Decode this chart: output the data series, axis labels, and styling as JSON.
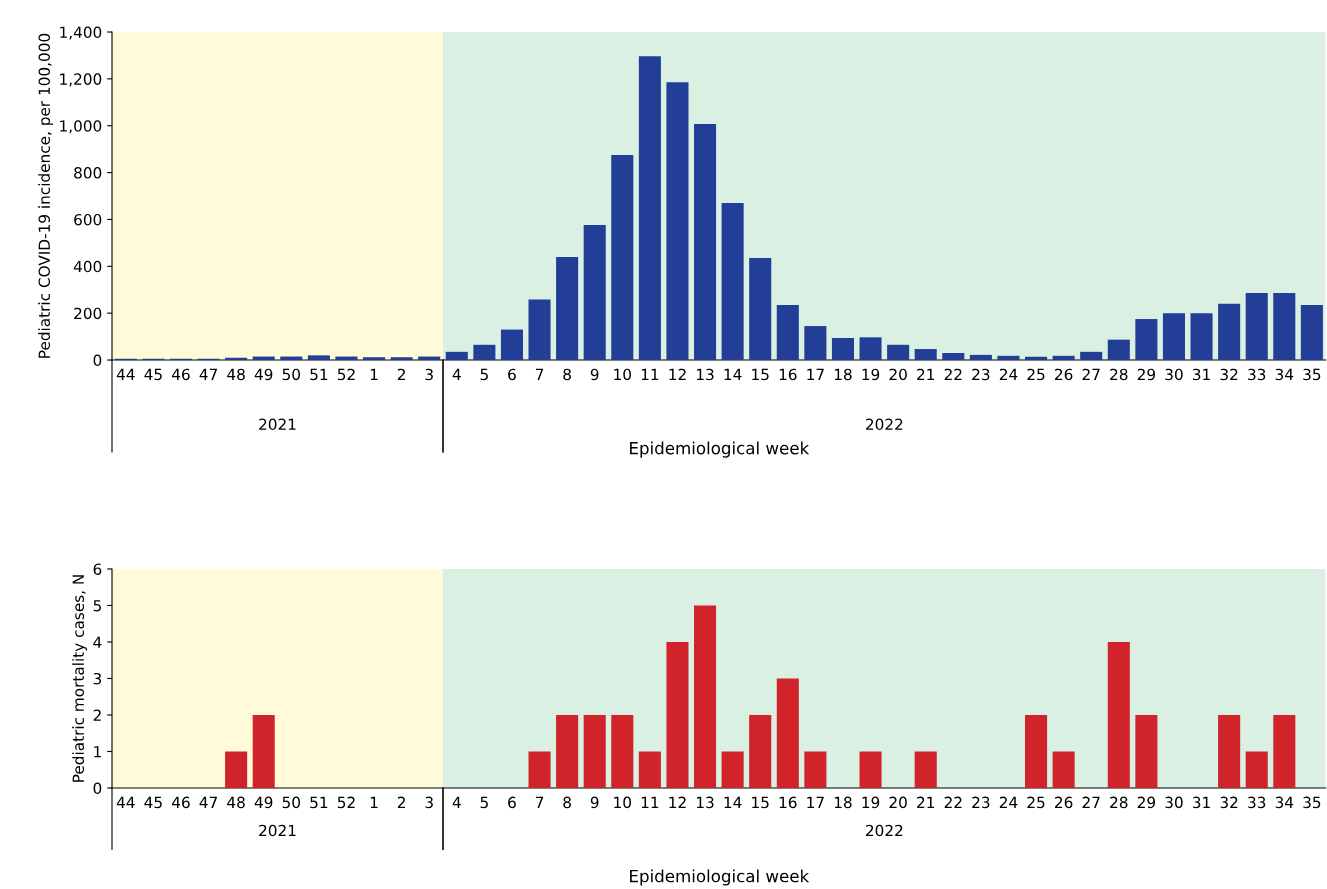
{
  "chart_data": [
    {
      "type": "bar",
      "ylabel": "Pediatric COVID-19 incidence, per 100,000",
      "xlabel": "Epidemiological week",
      "categories": [
        "44",
        "45",
        "46",
        "47",
        "48",
        "49",
        "50",
        "51",
        "52",
        "1",
        "2",
        "3",
        "4",
        "5",
        "6",
        "7",
        "8",
        "9",
        "10",
        "11",
        "12",
        "13",
        "14",
        "15",
        "16",
        "17",
        "18",
        "19",
        "20",
        "21",
        "22",
        "23",
        "24",
        "25",
        "26",
        "27",
        "28",
        "29",
        "30",
        "31",
        "32",
        "33",
        "34",
        "35"
      ],
      "series": [
        {
          "color": "#233e96",
          "values": [
            5,
            5,
            5,
            5,
            10,
            15,
            15,
            20,
            15,
            12,
            12,
            15,
            35,
            65,
            130,
            258,
            440,
            576,
            875,
            1297,
            1186,
            1007,
            670,
            435,
            235,
            145,
            94,
            97,
            65,
            47,
            30,
            22,
            18,
            14,
            18,
            35,
            87,
            175,
            200,
            200,
            240,
            286,
            286,
            235
          ]
        }
      ],
      "ylim": [
        0,
        1400
      ],
      "yticks": [
        0,
        200,
        400,
        600,
        800,
        {
          "value": 1000,
          "label": "1,000"
        },
        {
          "value": 1200,
          "label": "1,200"
        },
        {
          "value": 1400,
          "label": "1,400"
        }
      ],
      "annotations": [
        "2021",
        "2022"
      ],
      "bands": [
        {
          "axis": "x",
          "from": "44",
          "to": "3",
          "color": "#fffbd9"
        },
        {
          "axis": "x",
          "from": "4",
          "to": "35",
          "color": "#d9f0e3"
        }
      ]
    },
    {
      "type": "bar",
      "ylabel": "Pediatric mortality cases, N",
      "xlabel": "Epidemiological week",
      "categories": [
        "44",
        "45",
        "46",
        "47",
        "48",
        "49",
        "50",
        "51",
        "52",
        "1",
        "2",
        "3",
        "4",
        "5",
        "6",
        "7",
        "8",
        "9",
        "10",
        "11",
        "12",
        "13",
        "14",
        "15",
        "16",
        "17",
        "18",
        "19",
        "20",
        "21",
        "22",
        "23",
        "24",
        "25",
        "26",
        "27",
        "28",
        "29",
        "30",
        "31",
        "32",
        "33",
        "34",
        "35"
      ],
      "series": [
        {
          "color": "#d1232a",
          "values": [
            0,
            0,
            0,
            0,
            1,
            2,
            0,
            0,
            0,
            0,
            0,
            0,
            0,
            0,
            0,
            1,
            2,
            2,
            2,
            1,
            4,
            5,
            1,
            2,
            3,
            1,
            0,
            1,
            0,
            1,
            0,
            0,
            0,
            2,
            1,
            0,
            4,
            2,
            0,
            0,
            2,
            1,
            2,
            0
          ]
        }
      ],
      "ylim": [
        0,
        6
      ],
      "yticks": [
        0,
        1,
        2,
        3,
        4,
        5,
        6
      ],
      "annotations": [
        "2021",
        "2022"
      ],
      "bands": [
        {
          "axis": "x",
          "from": "44",
          "to": "3",
          "color": "#fffbd9"
        },
        {
          "axis": "x",
          "from": "4",
          "to": "35",
          "color": "#d9f0e3"
        }
      ]
    }
  ]
}
